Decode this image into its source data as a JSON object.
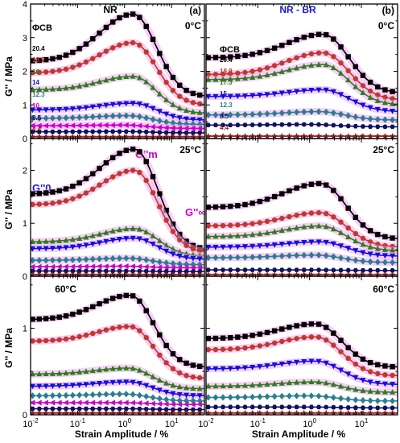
{
  "figure": {
    "x_axis_label": "Strain Amplitude / %",
    "y_axis_label": "G'' / MPa",
    "legend_header": "ΦCB",
    "annotations": {
      "g0": "G''0",
      "gm": "G''m",
      "ginf": "G''∞"
    }
  },
  "chart_data": [
    {
      "panel": "NR 0°C",
      "title": "NR",
      "tag": "(a)",
      "temperature": "0°C",
      "type": "scatter",
      "x_scale": "log",
      "xlim": [
        0.01,
        50
      ],
      "ylim": [
        0,
        4
      ],
      "y_ticks": [
        "0",
        "1",
        "2",
        "3",
        "4"
      ],
      "legend": [
        "20.4",
        "18.9",
        "16",
        "14",
        "12.3",
        "10",
        "8.5",
        "4.4"
      ],
      "series": [
        {
          "name": "20.4",
          "marker": "square",
          "color": "#000000",
          "g0": 2.3,
          "gm": 3.7,
          "xm": 1.5,
          "ginf": 1.25
        },
        {
          "name": "18.9",
          "marker": "circle",
          "color": "#c0392b",
          "g0": 1.95,
          "gm": 2.85,
          "xm": 1.5,
          "ginf": 1.0
        },
        {
          "name": "16",
          "marker": "triangle-up",
          "color": "#2e7d1e",
          "g0": 1.45,
          "gm": 1.85,
          "xm": 1.5,
          "ginf": 0.75
        },
        {
          "name": "14",
          "marker": "triangle-down",
          "color": "#1010e0",
          "g0": 0.85,
          "gm": 1.05,
          "xm": 1.5,
          "ginf": 0.55
        },
        {
          "name": "12.3",
          "marker": "diamond",
          "color": "#2a7f8f",
          "g0": 0.6,
          "gm": 0.68,
          "xm": 1.2,
          "ginf": 0.42
        },
        {
          "name": "10",
          "marker": "triangle-left",
          "color": "#cc00cc",
          "g0": 0.38,
          "gm": 0.4,
          "xm": 1.0,
          "ginf": 0.3
        },
        {
          "name": "8.5",
          "marker": "hexagon",
          "color": "#101060",
          "g0": 0.2,
          "gm": 0.21,
          "xm": 1.0,
          "ginf": 0.17
        },
        {
          "name": "4.4",
          "marker": "star",
          "color": "#8b1a1a",
          "g0": 0.05,
          "gm": 0.05,
          "xm": 1.0,
          "ginf": 0.05
        }
      ]
    },
    {
      "panel": "NR-BR 0°C",
      "title": "NR - BR",
      "tag": "(b)",
      "temperature": "0°C",
      "type": "scatter",
      "x_scale": "log",
      "xlim": [
        0.01,
        50
      ],
      "ylim": [
        0,
        4
      ],
      "y_ticks": [],
      "legend": [
        "20.4",
        "18.9",
        "17.3",
        "15",
        "12.3",
        "8.5",
        "4.4"
      ],
      "series": [
        {
          "name": "20.4",
          "marker": "square",
          "color": "#000000",
          "g0": 2.4,
          "gm": 3.1,
          "xm": 1.8,
          "ginf": 1.35
        },
        {
          "name": "18.9",
          "marker": "circle",
          "color": "#c0392b",
          "g0": 1.9,
          "gm": 2.55,
          "xm": 1.8,
          "ginf": 1.15
        },
        {
          "name": "17.3",
          "marker": "triangle-up",
          "color": "#2e7d1e",
          "g0": 1.75,
          "gm": 2.2,
          "xm": 1.8,
          "ginf": 1.0
        },
        {
          "name": "15",
          "marker": "triangle-down",
          "color": "#1010e0",
          "g0": 1.25,
          "gm": 1.45,
          "xm": 1.8,
          "ginf": 0.8
        },
        {
          "name": "12.3",
          "marker": "diamond",
          "color": "#2a7f8f",
          "g0": 0.7,
          "gm": 0.8,
          "xm": 1.5,
          "ginf": 0.55
        },
        {
          "name": "8.5",
          "marker": "hexagon",
          "color": "#101060",
          "g0": 0.4,
          "gm": 0.42,
          "xm": 1.0,
          "ginf": 0.35
        },
        {
          "name": "4.4",
          "marker": "star",
          "color": "#8b1a1a",
          "g0": 0.07,
          "gm": 0.07,
          "xm": 1.0,
          "ginf": 0.07
        }
      ]
    },
    {
      "panel": "NR 25°C",
      "temperature": "25°C",
      "type": "scatter",
      "x_scale": "log",
      "xlim": [
        0.01,
        50
      ],
      "ylim": [
        0,
        2.6
      ],
      "y_ticks": [
        "0",
        "1",
        "2"
      ],
      "series": [
        {
          "name": "20.4",
          "marker": "square",
          "color": "#000000",
          "g0": 1.55,
          "gm": 2.4,
          "xm": 1.6,
          "ginf": 0.5
        },
        {
          "name": "18.9",
          "marker": "circle",
          "color": "#c0392b",
          "g0": 1.35,
          "gm": 2.0,
          "xm": 1.6,
          "ginf": 0.45
        },
        {
          "name": "16",
          "marker": "triangle-up",
          "color": "#2e7d1e",
          "g0": 0.65,
          "gm": 0.9,
          "xm": 1.6,
          "ginf": 0.38
        },
        {
          "name": "14",
          "marker": "triangle-down",
          "color": "#1010e0",
          "g0": 0.52,
          "gm": 0.72,
          "xm": 1.6,
          "ginf": 0.32
        },
        {
          "name": "12.3",
          "marker": "diamond",
          "color": "#2a7f8f",
          "g0": 0.3,
          "gm": 0.34,
          "xm": 1.2,
          "ginf": 0.22
        },
        {
          "name": "10",
          "marker": "triangle-left",
          "color": "#cc00cc",
          "g0": 0.18,
          "gm": 0.19,
          "xm": 1.0,
          "ginf": 0.16
        },
        {
          "name": "8.5",
          "marker": "hexagon",
          "color": "#101060",
          "g0": 0.1,
          "gm": 0.1,
          "xm": 1.0,
          "ginf": 0.09
        },
        {
          "name": "4.4",
          "marker": "star",
          "color": "#8b1a1a",
          "g0": 0.03,
          "gm": 0.03,
          "xm": 1.0,
          "ginf": 0.03
        }
      ]
    },
    {
      "panel": "NR-BR 25°C",
      "temperature": "25°C",
      "type": "scatter",
      "x_scale": "log",
      "xlim": [
        0.01,
        50
      ],
      "ylim": [
        0,
        2.6
      ],
      "y_ticks": [],
      "series": [
        {
          "name": "20.4",
          "marker": "square",
          "color": "#000000",
          "g0": 1.3,
          "gm": 1.75,
          "xm": 1.6,
          "ginf": 0.7
        },
        {
          "name": "18.9",
          "marker": "circle",
          "color": "#c0392b",
          "g0": 0.95,
          "gm": 1.2,
          "xm": 1.6,
          "ginf": 0.55
        },
        {
          "name": "17.3",
          "marker": "triangle-up",
          "color": "#2e7d1e",
          "g0": 0.75,
          "gm": 0.95,
          "xm": 1.6,
          "ginf": 0.48
        },
        {
          "name": "15",
          "marker": "triangle-down",
          "color": "#1010e0",
          "g0": 0.55,
          "gm": 0.65,
          "xm": 1.6,
          "ginf": 0.38
        },
        {
          "name": "12.3",
          "marker": "diamond",
          "color": "#2a7f8f",
          "g0": 0.35,
          "gm": 0.4,
          "xm": 1.3,
          "ginf": 0.26
        },
        {
          "name": "8.5",
          "marker": "hexagon",
          "color": "#101060",
          "g0": 0.12,
          "gm": 0.12,
          "xm": 1.0,
          "ginf": 0.11
        },
        {
          "name": "4.4",
          "marker": "star",
          "color": "#8b1a1a",
          "g0": 0.03,
          "gm": 0.03,
          "xm": 1.0,
          "ginf": 0.03
        }
      ]
    },
    {
      "panel": "NR 60°C",
      "temperature": "60°C",
      "type": "scatter",
      "x_scale": "log",
      "xlim": [
        0.01,
        50
      ],
      "ylim": [
        0,
        1.6
      ],
      "y_ticks": [
        "0",
        "1"
      ],
      "series": [
        {
          "name": "20.4",
          "marker": "square",
          "color": "#000000",
          "g0": 1.1,
          "gm": 1.38,
          "xm": 1.3,
          "ginf": 0.55
        },
        {
          "name": "18.9",
          "marker": "circle",
          "color": "#c0392b",
          "g0": 0.85,
          "gm": 1.02,
          "xm": 1.3,
          "ginf": 0.42
        },
        {
          "name": "16",
          "marker": "triangle-up",
          "color": "#2e7d1e",
          "g0": 0.47,
          "gm": 0.54,
          "xm": 1.2,
          "ginf": 0.3
        },
        {
          "name": "14",
          "marker": "triangle-down",
          "color": "#1010e0",
          "g0": 0.33,
          "gm": 0.38,
          "xm": 1.2,
          "ginf": 0.22
        },
        {
          "name": "12.3",
          "marker": "diamond",
          "color": "#2a7f8f",
          "g0": 0.22,
          "gm": 0.24,
          "xm": 1.0,
          "ginf": 0.16
        },
        {
          "name": "10",
          "marker": "triangle-left",
          "color": "#cc00cc",
          "g0": 0.14,
          "gm": 0.14,
          "xm": 1.0,
          "ginf": 0.12
        },
        {
          "name": "8.5",
          "marker": "hexagon",
          "color": "#101060",
          "g0": 0.07,
          "gm": 0.07,
          "xm": 1.0,
          "ginf": 0.06
        },
        {
          "name": "4.4",
          "marker": "star",
          "color": "#8b1a1a",
          "g0": 0.02,
          "gm": 0.02,
          "xm": 1.0,
          "ginf": 0.02
        }
      ]
    },
    {
      "panel": "NR-BR 60°C",
      "temperature": "60°C",
      "type": "scatter",
      "x_scale": "log",
      "xlim": [
        0.01,
        50
      ],
      "ylim": [
        0,
        1.6
      ],
      "y_ticks": [],
      "series": [
        {
          "name": "20.4",
          "marker": "square",
          "color": "#000000",
          "g0": 0.88,
          "gm": 1.05,
          "xm": 1.3,
          "ginf": 0.55
        },
        {
          "name": "18.9",
          "marker": "circle",
          "color": "#c0392b",
          "g0": 0.75,
          "gm": 0.9,
          "xm": 1.3,
          "ginf": 0.45
        },
        {
          "name": "17.3",
          "marker": "triangle-down",
          "color": "#1010e0",
          "g0": 0.53,
          "gm": 0.62,
          "xm": 1.3,
          "ginf": 0.35
        },
        {
          "name": "15",
          "marker": "triangle-up",
          "color": "#2e7d1e",
          "g0": 0.33,
          "gm": 0.38,
          "xm": 1.2,
          "ginf": 0.26
        },
        {
          "name": "12.3",
          "marker": "diamond",
          "color": "#2a7f8f",
          "g0": 0.2,
          "gm": 0.22,
          "xm": 1.0,
          "ginf": 0.16
        },
        {
          "name": "8.5",
          "marker": "hexagon",
          "color": "#101060",
          "g0": 0.09,
          "gm": 0.09,
          "xm": 1.0,
          "ginf": 0.08
        },
        {
          "name": "4.4",
          "marker": "star",
          "color": "#8b1a1a",
          "g0": 0.02,
          "gm": 0.02,
          "xm": 1.0,
          "ginf": 0.02
        }
      ]
    }
  ],
  "x_ticks": [
    "10-2",
    "10-1",
    "100",
    "101"
  ],
  "x_tick_values": [
    0.01,
    0.1,
    1,
    10
  ],
  "highlight_color": "#f3a6ef"
}
